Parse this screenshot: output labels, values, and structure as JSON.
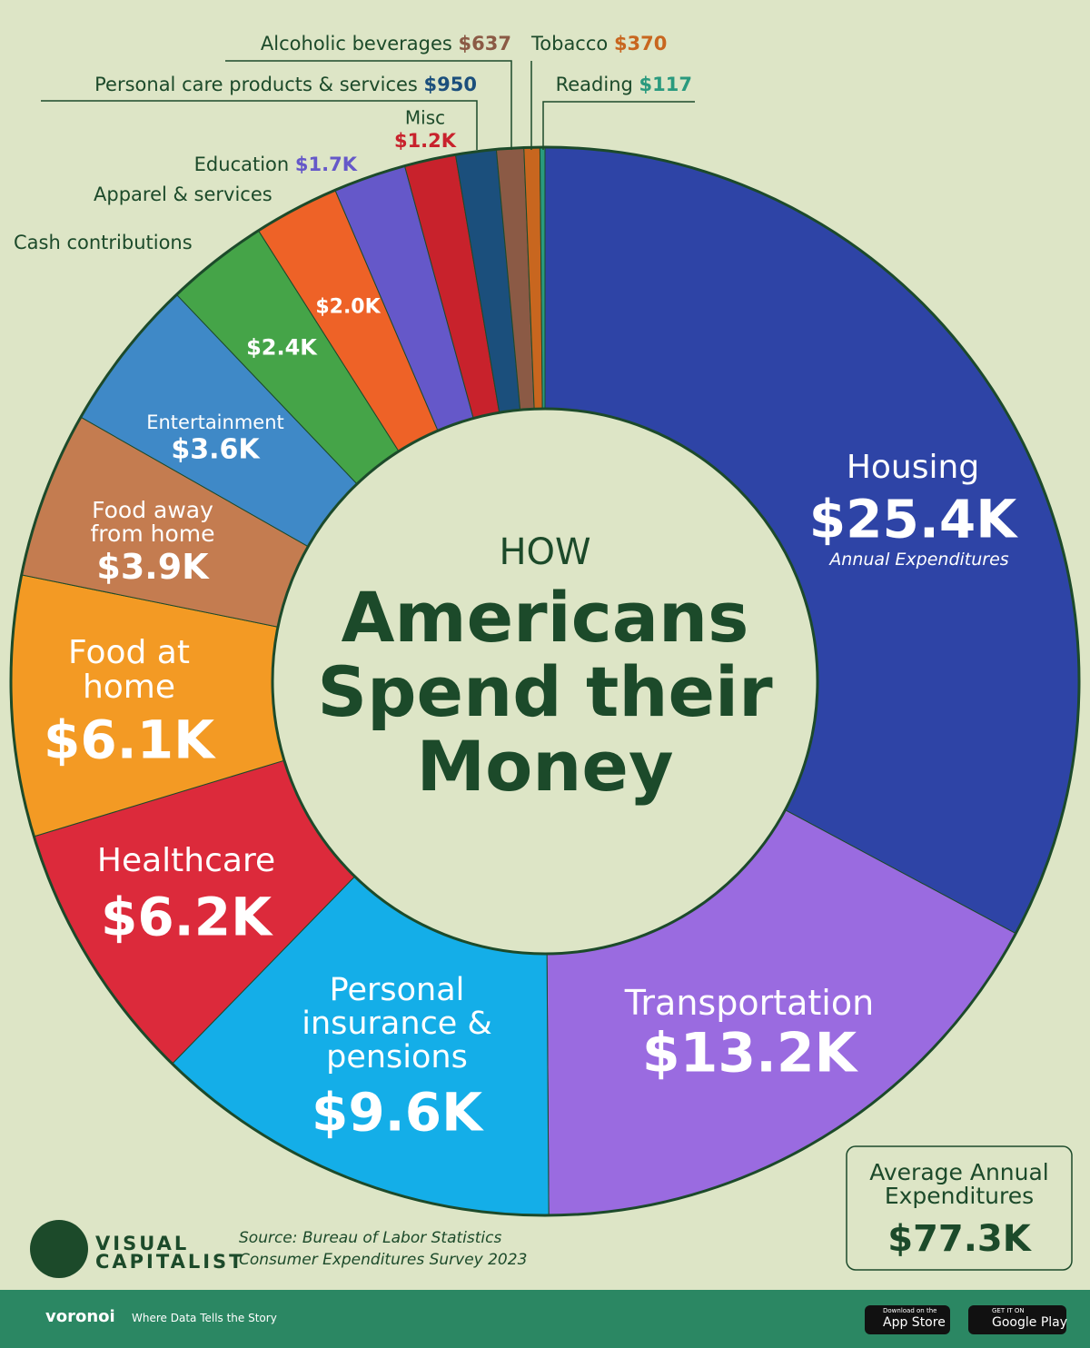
{
  "chart_data": {
    "type": "donut",
    "title_lines": [
      "HOW",
      "Americans",
      "Spend their",
      "Money"
    ],
    "annotation": "Annual Expenditures",
    "categories": [
      "Housing",
      "Transportation",
      "Personal insurance & pensions",
      "Healthcare",
      "Food at home",
      "Food away from home",
      "Entertainment",
      "Cash contributions",
      "Apparel & services",
      "Education",
      "Misc",
      "Personal care products & services",
      "Alcoholic beverages",
      "Tobacco",
      "Reading"
    ],
    "values": [
      25400,
      13200,
      9600,
      6200,
      6100,
      3900,
      3600,
      2400,
      2000,
      1700,
      1200,
      950,
      637,
      370,
      117
    ],
    "value_labels": [
      "$25.4K",
      "$13.2K",
      "$9.6K",
      "$6.2K",
      "$6.1K",
      "$3.9K",
      "$3.6K",
      "$2.4K",
      "$2.0K",
      "$1.7K",
      "$1.2K",
      "$950",
      "$637",
      "$370",
      "$117"
    ],
    "colors": [
      "#2e44a6",
      "#9a6be0",
      "#14aee8",
      "#dc2a3b",
      "#f39a24",
      "#c47c50",
      "#3f89c7",
      "#45a448",
      "#ee6227",
      "#6558c9",
      "#c8222c",
      "#1b4f7c",
      "#8b5a45",
      "#c8661f",
      "#2a9a7e"
    ],
    "total": {
      "label": "Average Annual Expenditures",
      "value": "$77.3K"
    }
  },
  "source": [
    "Source: Bureau of Labor Statistics",
    "Consumer Expenditures Survey 2023"
  ],
  "brand": [
    "VISUAL",
    "CAPITALIST"
  ],
  "footer": {
    "brand": "voronoi",
    "tagline": "Where Data Tells the Story",
    "app_store": [
      "Download on the",
      "App Store"
    ],
    "google_play": [
      "GET IT ON",
      "Google Play"
    ]
  }
}
